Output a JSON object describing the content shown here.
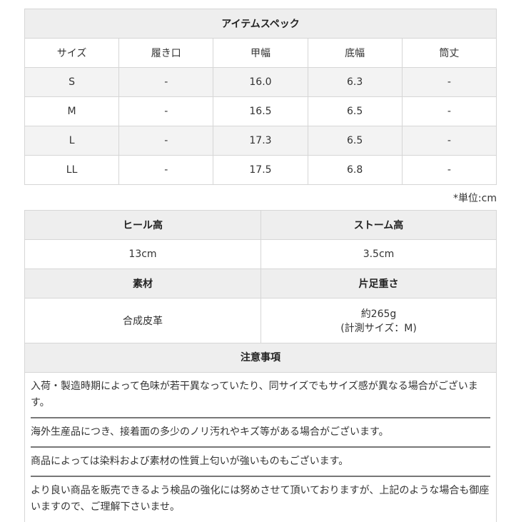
{
  "spec": {
    "title": "アイテムスペック",
    "headers": [
      "サイズ",
      "履き口",
      "甲幅",
      "底幅",
      "筒丈"
    ],
    "rows": [
      [
        "S",
        "-",
        "16.0",
        "6.3",
        "-"
      ],
      [
        "M",
        "-",
        "16.5",
        "6.5",
        "-"
      ],
      [
        "L",
        "-",
        "17.3",
        "6.5",
        "-"
      ],
      [
        "LL",
        "-",
        "17.5",
        "6.8",
        "-"
      ]
    ],
    "unit": "*単位:cm"
  },
  "details": {
    "heel_label": "ヒール高",
    "heel_value": "13cm",
    "storm_label": "ストーム高",
    "storm_value": "3.5cm",
    "material_label": "素材",
    "material_value": "合成皮革",
    "weight_label": "片足重さ",
    "weight_value": "約265g",
    "weight_note": "(計測サイズ：M)"
  },
  "notes": {
    "title": "注意事項",
    "items": [
      "入荷・製造時期によって色味が若干異なっていたり、同サイズでもサイズ感が異なる場合がございます。",
      "海外生産品につき、接着面の多少のノリ汚れやキズ等がある場合がございます。",
      "商品によっては染料および素材の性質上匂いが強いものもございます。",
      "より良い商品を販売できるよう検品の強化には努めさせて頂いておりますが、上記のような場合も御座いますので、ご理解下さいませ。"
    ]
  }
}
